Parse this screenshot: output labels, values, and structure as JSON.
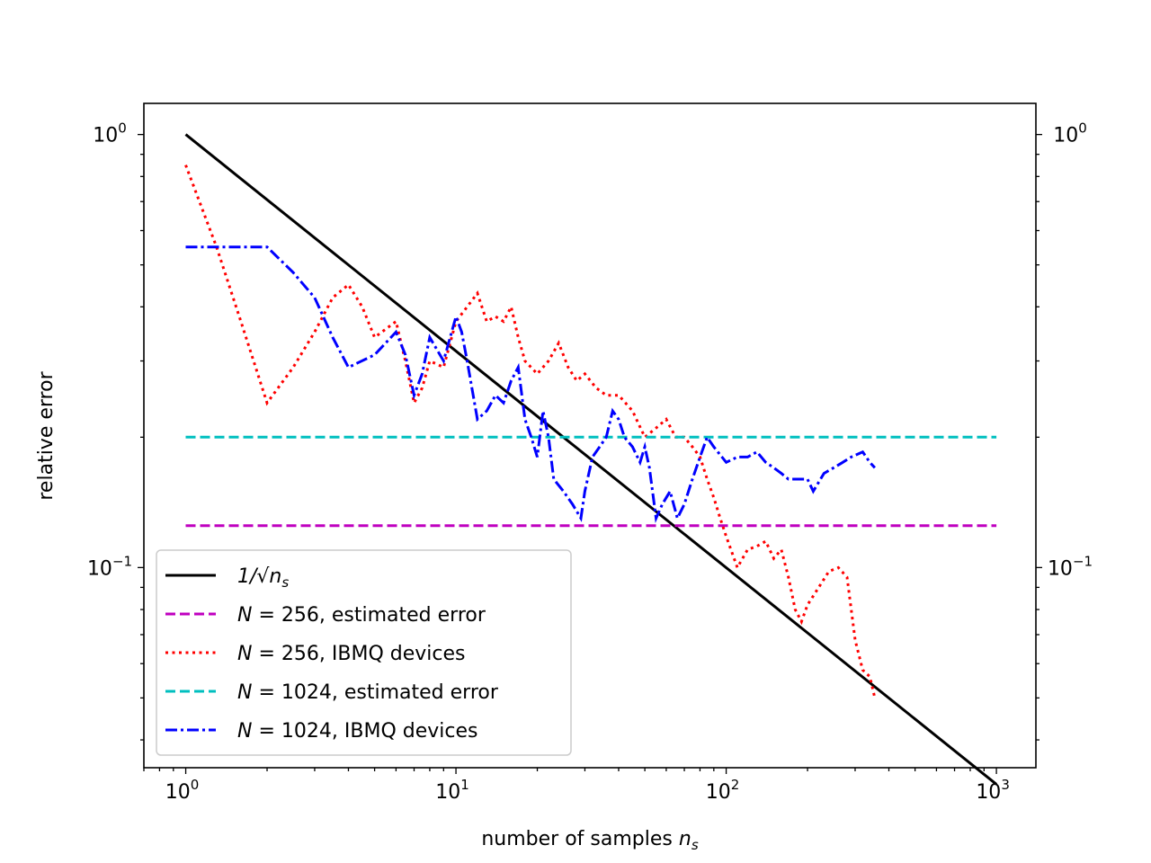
{
  "chart_data": {
    "type": "line",
    "xscale": "log",
    "yscale": "log",
    "xlabel": "number of samples n_s",
    "ylabel": "relative error",
    "xlim": [
      0.7,
      1400
    ],
    "ylim": [
      0.0345,
      1.18
    ],
    "x_ticks": [
      {
        "value": 1,
        "label": "10^0"
      },
      {
        "value": 10,
        "label": "10^1"
      },
      {
        "value": 100,
        "label": "10^2"
      },
      {
        "value": 1000,
        "label": "10^3"
      }
    ],
    "y_ticks": [
      {
        "value": 0.1,
        "label": "10^-1"
      },
      {
        "value": 1,
        "label": "10^0"
      }
    ],
    "legend_location": "lower-left",
    "series": [
      {
        "name": "1/√n_s",
        "label_math": "1/√n",
        "label_sub": "s",
        "color": "#000000",
        "dash": "solid",
        "points": [
          [
            1,
            1.0
          ],
          [
            1000,
            0.0316
          ]
        ]
      },
      {
        "name": "N = 256, estimated error",
        "label_text": ", estimated error",
        "label_N": "256",
        "color": "#bf00bf",
        "dash": "dashed",
        "points": [
          [
            1,
            0.125
          ],
          [
            1000,
            0.125
          ]
        ]
      },
      {
        "name": "N = 256, IBMQ devices",
        "label_text": ", IBMQ devices",
        "label_N": "256",
        "color": "#ff0000",
        "dash": "dotted",
        "points": [
          [
            1,
            0.85
          ],
          [
            1.3,
            0.55
          ],
          [
            1.6,
            0.37
          ],
          [
            2,
            0.24
          ],
          [
            2.5,
            0.29
          ],
          [
            3,
            0.35
          ],
          [
            3.5,
            0.42
          ],
          [
            4,
            0.45
          ],
          [
            4.5,
            0.4
          ],
          [
            5,
            0.34
          ],
          [
            6,
            0.37
          ],
          [
            6.5,
            0.3
          ],
          [
            7,
            0.24
          ],
          [
            7.5,
            0.26
          ],
          [
            8,
            0.3
          ],
          [
            9,
            0.29
          ],
          [
            10,
            0.37
          ],
          [
            11,
            0.4
          ],
          [
            12,
            0.43
          ],
          [
            13,
            0.37
          ],
          [
            14,
            0.38
          ],
          [
            15,
            0.37
          ],
          [
            16,
            0.4
          ],
          [
            17,
            0.34
          ],
          [
            18,
            0.3
          ],
          [
            20,
            0.28
          ],
          [
            22,
            0.3
          ],
          [
            24,
            0.33
          ],
          [
            26,
            0.29
          ],
          [
            28,
            0.27
          ],
          [
            30,
            0.28
          ],
          [
            33,
            0.26
          ],
          [
            36,
            0.25
          ],
          [
            40,
            0.25
          ],
          [
            45,
            0.23
          ],
          [
            50,
            0.2
          ],
          [
            55,
            0.21
          ],
          [
            60,
            0.22
          ],
          [
            65,
            0.2
          ],
          [
            70,
            0.2
          ],
          [
            75,
            0.19
          ],
          [
            80,
            0.18
          ],
          [
            85,
            0.16
          ],
          [
            90,
            0.145
          ],
          [
            95,
            0.13
          ],
          [
            100,
            0.118
          ],
          [
            110,
            0.1
          ],
          [
            120,
            0.11
          ],
          [
            130,
            0.112
          ],
          [
            140,
            0.115
          ],
          [
            150,
            0.105
          ],
          [
            160,
            0.11
          ],
          [
            170,
            0.095
          ],
          [
            180,
            0.08
          ],
          [
            190,
            0.075
          ],
          [
            200,
            0.082
          ],
          [
            220,
            0.09
          ],
          [
            240,
            0.098
          ],
          [
            260,
            0.1
          ],
          [
            280,
            0.095
          ],
          [
            300,
            0.068
          ],
          [
            320,
            0.058
          ],
          [
            340,
            0.056
          ],
          [
            355,
            0.05
          ]
        ]
      },
      {
        "name": "N = 1024, estimated error",
        "label_text": ", estimated error",
        "label_N": "1024",
        "color": "#00bfbf",
        "dash": "dashed",
        "points": [
          [
            1,
            0.2
          ],
          [
            1000,
            0.2
          ]
        ]
      },
      {
        "name": "N = 1024, IBMQ devices",
        "label_text": ", IBMQ devices",
        "label_N": "1024",
        "color": "#0000ff",
        "dash": "dashdot",
        "points": [
          [
            1,
            0.55
          ],
          [
            1.5,
            0.55
          ],
          [
            2,
            0.55
          ],
          [
            2.5,
            0.48
          ],
          [
            3,
            0.42
          ],
          [
            3.5,
            0.34
          ],
          [
            4,
            0.29
          ],
          [
            5,
            0.31
          ],
          [
            6,
            0.35
          ],
          [
            6.5,
            0.31
          ],
          [
            7,
            0.25
          ],
          [
            7.5,
            0.28
          ],
          [
            8,
            0.34
          ],
          [
            9,
            0.3
          ],
          [
            10,
            0.38
          ],
          [
            10.5,
            0.35
          ],
          [
            11,
            0.3
          ],
          [
            12,
            0.22
          ],
          [
            13,
            0.23
          ],
          [
            14,
            0.25
          ],
          [
            15,
            0.24
          ],
          [
            16,
            0.27
          ],
          [
            17,
            0.29
          ],
          [
            18,
            0.22
          ],
          [
            19,
            0.2
          ],
          [
            20,
            0.18
          ],
          [
            21,
            0.23
          ],
          [
            22,
            0.2
          ],
          [
            23,
            0.16
          ],
          [
            25,
            0.15
          ],
          [
            27,
            0.14
          ],
          [
            29,
            0.13
          ],
          [
            30,
            0.15
          ],
          [
            32,
            0.18
          ],
          [
            34,
            0.19
          ],
          [
            36,
            0.2
          ],
          [
            38,
            0.23
          ],
          [
            40,
            0.22
          ],
          [
            42,
            0.2
          ],
          [
            45,
            0.19
          ],
          [
            48,
            0.175
          ],
          [
            50,
            0.19
          ],
          [
            52,
            0.17
          ],
          [
            55,
            0.13
          ],
          [
            58,
            0.14
          ],
          [
            62,
            0.15
          ],
          [
            66,
            0.13
          ],
          [
            70,
            0.14
          ],
          [
            75,
            0.16
          ],
          [
            80,
            0.18
          ],
          [
            85,
            0.2
          ],
          [
            90,
            0.19
          ],
          [
            100,
            0.175
          ],
          [
            110,
            0.18
          ],
          [
            120,
            0.18
          ],
          [
            130,
            0.185
          ],
          [
            140,
            0.175
          ],
          [
            150,
            0.17
          ],
          [
            160,
            0.165
          ],
          [
            170,
            0.16
          ],
          [
            180,
            0.16
          ],
          [
            200,
            0.16
          ],
          [
            210,
            0.15
          ],
          [
            230,
            0.165
          ],
          [
            250,
            0.17
          ],
          [
            270,
            0.175
          ],
          [
            290,
            0.18
          ],
          [
            320,
            0.185
          ],
          [
            340,
            0.175
          ],
          [
            355,
            0.17
          ]
        ]
      }
    ]
  }
}
